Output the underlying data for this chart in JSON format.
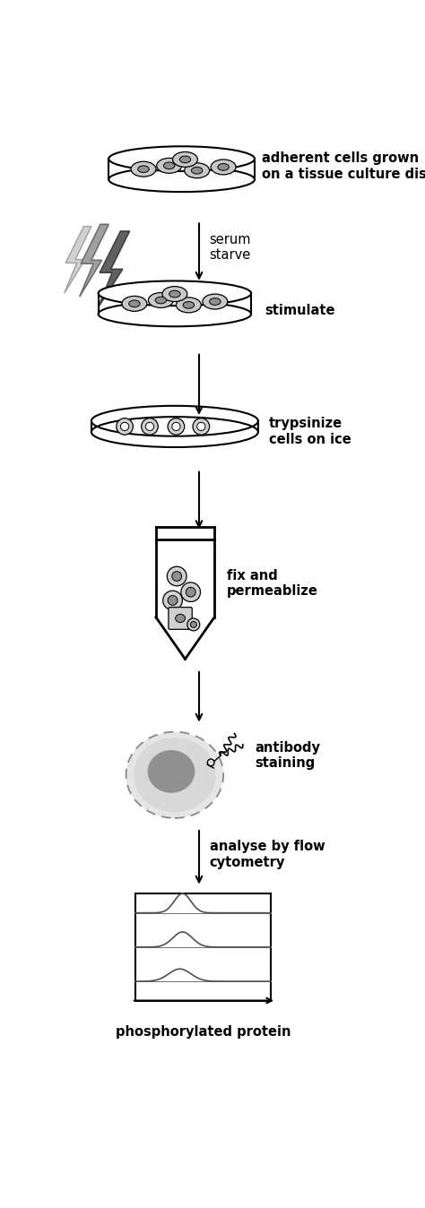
{
  "bg_color": "#ffffff",
  "text_color": "#000000",
  "line_color": "#000000",
  "fig_width": 4.74,
  "fig_height": 13.48,
  "labels": {
    "step1": "adherent cells grown\non a tissue culture dish",
    "arrow1": "serum\nstarve",
    "step2": "stimulate",
    "step3": "trypsinize\ncells on ice",
    "step4": "fix and\npermeablize",
    "step5": "antibody\nstaining",
    "step6": "analyse by flow\ncytometry",
    "bottom": "phosphorylated protein"
  },
  "font_size": 10.5,
  "lw": 1.5,
  "arrow_lw": 1.5
}
